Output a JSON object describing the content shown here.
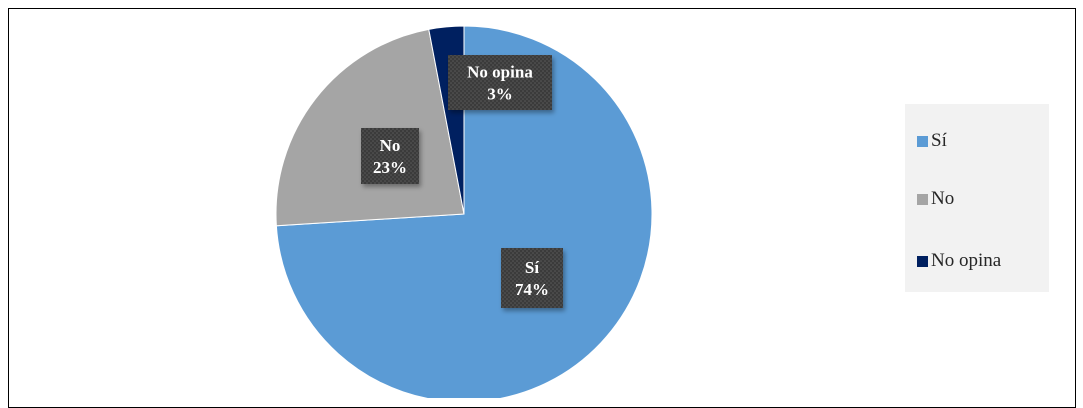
{
  "chart_data": {
    "type": "pie",
    "title": "",
    "categories": [
      "Sí",
      "No",
      "No opina"
    ],
    "values": [
      74,
      23,
      3
    ],
    "unit": "%",
    "labels": [
      {
        "category": "Sí",
        "value": "74%"
      },
      {
        "category": "No",
        "value": "23%"
      },
      {
        "category": "No opina",
        "value": "3%"
      }
    ],
    "colors": [
      "#5b9bd5",
      "#a5a5a5",
      "#002060"
    ],
    "start_angle_deg": 0,
    "direction": "clockwise",
    "legend": {
      "placement": "right",
      "items": [
        "Sí",
        "No",
        "No opina"
      ]
    }
  }
}
